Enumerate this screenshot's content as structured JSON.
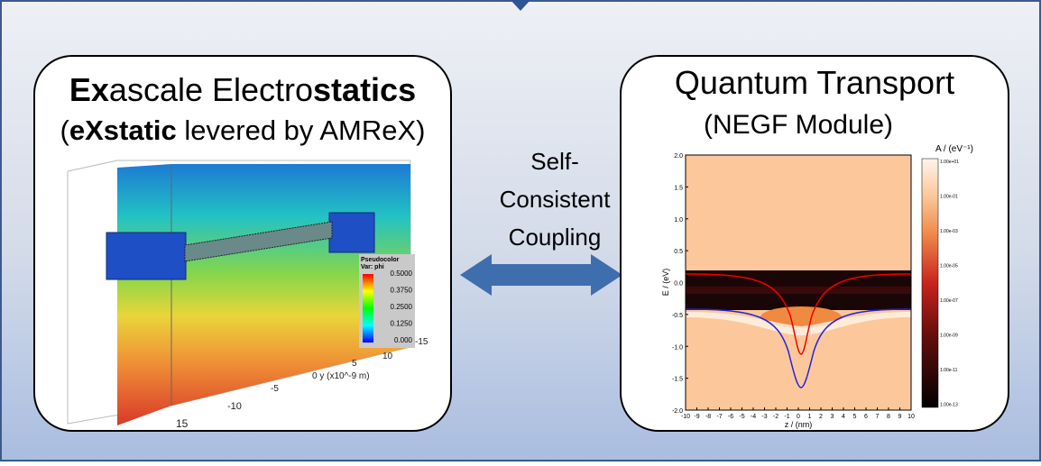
{
  "left_panel": {
    "title": [
      "Ex",
      "ascale Electro",
      "statics"
    ],
    "subtitle": [
      "(",
      "eXstatic",
      " levered by AMReX)"
    ],
    "legend": {
      "title": "Pseudocolor",
      "var": "Var: phi",
      "labels": [
        "0.5000",
        "0.3750",
        "0.2500",
        "0.1250",
        "0.000"
      ]
    },
    "axis_labels": [
      "-15",
      "10",
      "5",
      "0 y (x10^-9 m)",
      "-5",
      "-10",
      "15"
    ]
  },
  "coupling": {
    "label": [
      "Self-",
      "Consistent",
      "Coupling"
    ]
  },
  "right_panel": {
    "title": "Quantum Transport",
    "subtitle": "(NEGF Module)",
    "plot": {
      "y_label": "E / (eV)",
      "x_label": "z / (nm)",
      "y_ticks": [
        "2.0",
        "1.5",
        "1.0",
        "0.5",
        "0.0",
        "-0.5",
        "-1.0",
        "-1.5",
        "-2.0"
      ],
      "x_ticks": [
        "-10",
        "-9",
        "-8",
        "-7",
        "-6",
        "-5",
        "-4",
        "-3",
        "-2",
        "-1",
        "0",
        "1",
        "2",
        "3",
        "4",
        "5",
        "6",
        "7",
        "8",
        "9",
        "10"
      ],
      "colorbar_title": "A / (eV⁻¹)",
      "colorbar_ticks": [
        "1.00e+01",
        "1.00e-01",
        "1.00e-03",
        "1.00e-05",
        "1.00e-07",
        "1.00e-09",
        "1.00e-11",
        "1.00e-13"
      ]
    }
  }
}
